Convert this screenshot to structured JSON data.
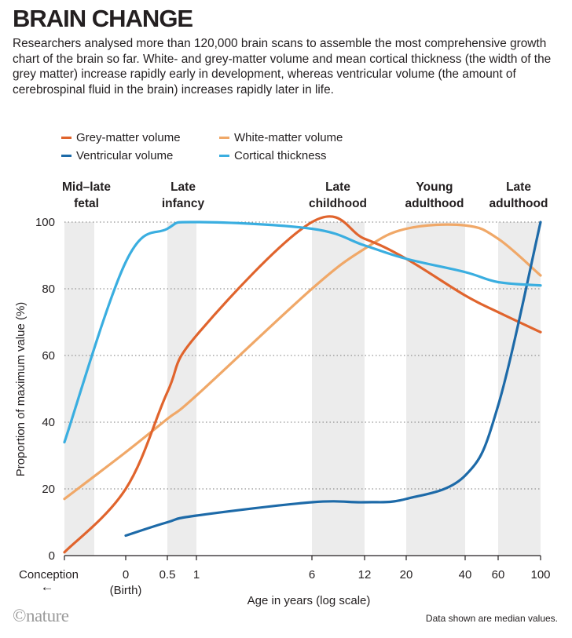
{
  "header": {
    "title": "BRAIN CHANGE",
    "subtitle": "Researchers analysed more than 120,000 brain scans to assemble the most comprehensive growth chart of the brain so far. White- and grey-matter volume and mean cortical thickness (the width of the grey matter) increase rapidly early in development, whereas ventricular volume (the amount of cerebrospinal fluid in the brain) increases rapidly later in life."
  },
  "legend": {
    "grey": "Grey-matter volume",
    "white": "White-matter volume",
    "ventricular": "Ventricular volume",
    "cortical": "Cortical thickness"
  },
  "stages": {
    "s1": "Mid–late fetal",
    "s2": "Late infancy",
    "s3": "Late childhood",
    "s4": "Young adulthood",
    "s5": "Late adulthood"
  },
  "footer": {
    "source": "©nature",
    "note": "Data shown are median values."
  },
  "chart_data": {
    "type": "line",
    "xlabel": "Age in years (log scale)",
    "ylabel": "Proportion of maximum value (%)",
    "x_scale": "log",
    "ylim": [
      0,
      100
    ],
    "y_ticks": [
      "0",
      "20",
      "40",
      "60",
      "80",
      "100"
    ],
    "x_ticks": [
      "Conception",
      "0",
      "0.5",
      "1",
      "6",
      "12",
      "20",
      "40",
      "60",
      "100"
    ],
    "x_tick_sublabel": "(Birth)",
    "conception_arrow": "←",
    "grid": true,
    "legend_position": "top-left",
    "colors": {
      "grey": "#e0642d",
      "white": "#f0a868",
      "ventricular": "#1d6aa8",
      "cortical": "#3aaee0",
      "band": "#ececec"
    },
    "series": [
      {
        "name": "Grey-matter volume",
        "key": "grey",
        "points": [
          [
            "Conception",
            1
          ],
          [
            "0",
            20
          ],
          [
            "0.5",
            49
          ],
          [
            "1",
            66
          ],
          [
            "6",
            100
          ],
          [
            "12",
            95
          ],
          [
            "20",
            89
          ],
          [
            "40",
            78
          ],
          [
            "60",
            73
          ],
          [
            "100",
            67
          ]
        ]
      },
      {
        "name": "White-matter volume",
        "key": "white",
        "points": [
          [
            "Conception",
            17
          ],
          [
            "0",
            31
          ],
          [
            "0.5",
            41
          ],
          [
            "1",
            48
          ],
          [
            "6",
            80
          ],
          [
            "12",
            92
          ],
          [
            "20",
            98
          ],
          [
            "40",
            99
          ],
          [
            "60",
            95
          ],
          [
            "100",
            84
          ]
        ]
      },
      {
        "name": "Ventricular volume",
        "key": "ventricular",
        "points": [
          [
            "0",
            6
          ],
          [
            "0.5",
            10
          ],
          [
            "1",
            12
          ],
          [
            "6",
            16
          ],
          [
            "12",
            16
          ],
          [
            "20",
            17
          ],
          [
            "40",
            24
          ],
          [
            "60",
            45
          ],
          [
            "100",
            100
          ]
        ]
      },
      {
        "name": "Cortical thickness",
        "key": "cortical",
        "points": [
          [
            "Conception",
            34
          ],
          [
            "0",
            88
          ],
          [
            "0.5",
            98
          ],
          [
            "1",
            100
          ],
          [
            "6",
            98
          ],
          [
            "12",
            93
          ],
          [
            "20",
            89
          ],
          [
            "40",
            85
          ],
          [
            "60",
            82
          ],
          [
            "100",
            81
          ]
        ]
      }
    ]
  }
}
